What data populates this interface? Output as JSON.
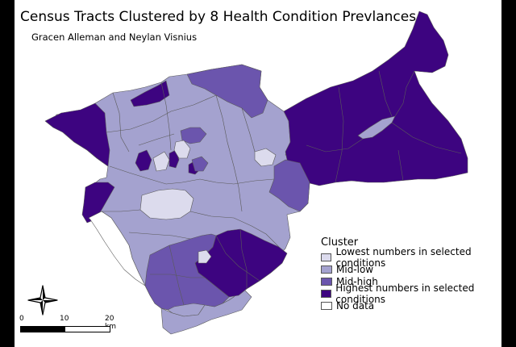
{
  "title": "Census Tracts Clustered by 8 Health Condition Prevlances",
  "authors": "Gracen Alleman and Neylan Visnius",
  "legend": {
    "title": "Cluster",
    "items": [
      {
        "label": "Lowest numbers in selected conditions",
        "color": "#dcdbed"
      },
      {
        "label": "Mid-low",
        "color": "#a4a2cf"
      },
      {
        "label": "Mid-high",
        "color": "#6b55ad"
      },
      {
        "label": "Highest numbers in selected conditions",
        "color": "#3d0480"
      },
      {
        "label": "No data",
        "color": "#ffffff"
      }
    ]
  },
  "scale_bar": {
    "labels": [
      "0",
      "10",
      "20 km"
    ]
  },
  "north_arrow": "compass-north-arrow-icon",
  "colors": {
    "outline": "#5a5a5a",
    "frame": "#000000"
  }
}
